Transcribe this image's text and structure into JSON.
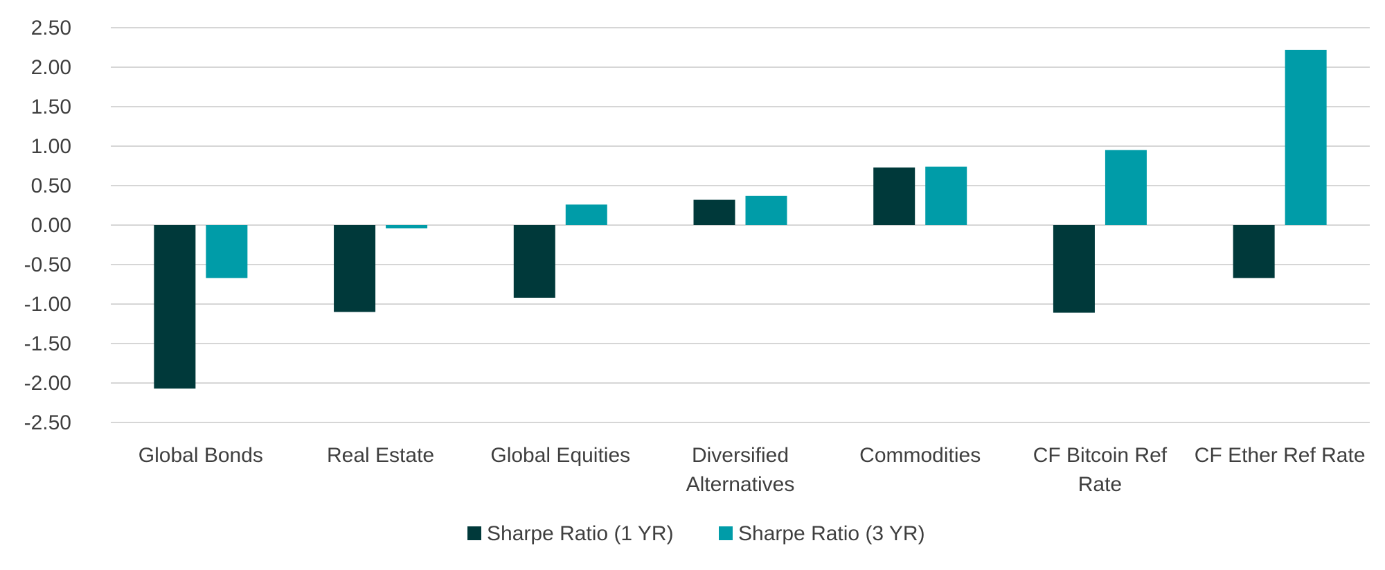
{
  "chart_data": {
    "type": "bar",
    "title": "",
    "xlabel": "",
    "ylabel": "",
    "ylim": [
      -2.5,
      2.5
    ],
    "ytick_step": 0.5,
    "yticks": [
      "2.50",
      "2.00",
      "1.50",
      "1.00",
      "0.50",
      "0.00",
      "-0.50",
      "-1.00",
      "-1.50",
      "-2.00",
      "-2.50"
    ],
    "categories": [
      [
        "Global Bonds"
      ],
      [
        "Real Estate"
      ],
      [
        "Global Equities"
      ],
      [
        "Diversified",
        "Alternatives"
      ],
      [
        "Commodities"
      ],
      [
        "CF Bitcoin Ref",
        "Rate"
      ],
      [
        "CF Ether Ref Rate"
      ]
    ],
    "series": [
      {
        "name": "Sharpe Ratio (1 YR)",
        "color": "#00393a",
        "values": [
          -2.07,
          -1.1,
          -0.92,
          0.32,
          0.73,
          -1.11,
          -0.67
        ]
      },
      {
        "name": "Sharpe Ratio (3 YR)",
        "color": "#009ca8",
        "values": [
          -0.67,
          -0.04,
          0.26,
          0.37,
          0.74,
          0.95,
          2.22
        ]
      }
    ],
    "grid": true,
    "legend": "bottom-center"
  }
}
